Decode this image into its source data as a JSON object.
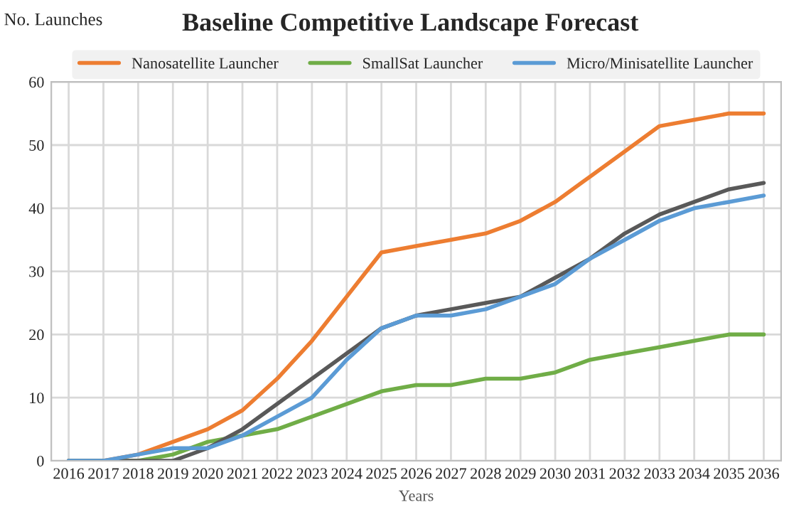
{
  "chart_data": {
    "type": "line",
    "title": "Baseline Competitive Landscape Forecast",
    "xlabel": "Years",
    "ylabel": "No. Launches",
    "categories": [
      "2016",
      "2017",
      "2018",
      "2019",
      "2020",
      "2021",
      "2022",
      "2023",
      "2024",
      "2025",
      "2026",
      "2027",
      "2028",
      "2029",
      "2030",
      "2031",
      "2032",
      "2033",
      "2034",
      "2035",
      "2036"
    ],
    "series": [
      {
        "name": "Nanosatellite Launcher",
        "color": "#ed7d31",
        "values": [
          0,
          0,
          1,
          3,
          5,
          8,
          13,
          19,
          26,
          33,
          34,
          35,
          36,
          38,
          41,
          45,
          49,
          53,
          54,
          55,
          55
        ]
      },
      {
        "name": "SmallSat Launcher",
        "color": "#70ad47",
        "values": [
          0,
          0,
          0,
          1,
          3,
          4,
          5,
          7,
          9,
          11,
          12,
          12,
          13,
          13,
          14,
          16,
          17,
          18,
          19,
          20,
          20
        ]
      },
      {
        "color": "#595959",
        "values": [
          0,
          0,
          0,
          0,
          2,
          5,
          9,
          13,
          17,
          21,
          23,
          24,
          25,
          26,
          29,
          32,
          36,
          39,
          41,
          43,
          44
        ]
      },
      {
        "name": "Micro/Minisatellite Launcher",
        "color": "#5b9bd5",
        "values": [
          0,
          0,
          1,
          2,
          2,
          4,
          7,
          10,
          16,
          21,
          23,
          23,
          24,
          26,
          28,
          32,
          35,
          38,
          40,
          41,
          42
        ]
      }
    ],
    "ylim": [
      0,
      60
    ],
    "yticks": [
      0,
      10,
      20,
      30,
      40,
      50,
      60
    ],
    "grid": true,
    "legend": "top",
    "marker": "none",
    "line_style": "solid"
  }
}
